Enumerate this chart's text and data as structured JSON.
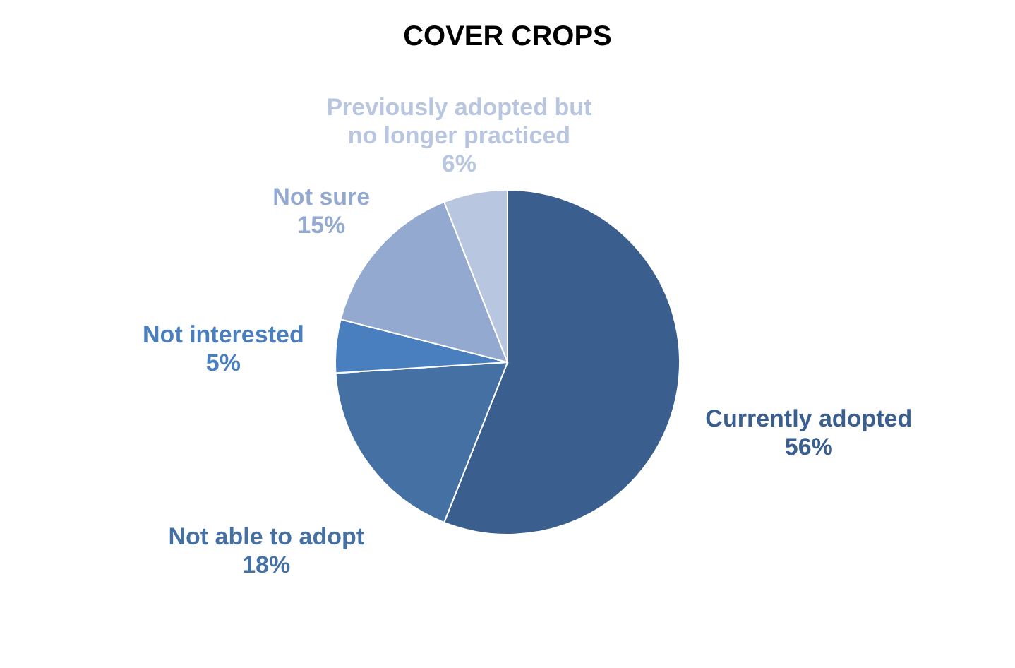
{
  "chart_data": {
    "type": "pie",
    "title": "COVER CROPS",
    "categories": [
      "Currently adopted",
      "Not able to adopt",
      "Not interested",
      "Not sure",
      "Previously adopted but no longer practiced"
    ],
    "values": [
      56,
      18,
      5,
      15,
      6
    ],
    "colors": [
      "#3a5f8f",
      "#4470a3",
      "#4a7fbf",
      "#93a9d0",
      "#b9c6e0"
    ],
    "value_labels": [
      "56%",
      "18%",
      "5%",
      "15%",
      "6%"
    ],
    "legend": false
  }
}
